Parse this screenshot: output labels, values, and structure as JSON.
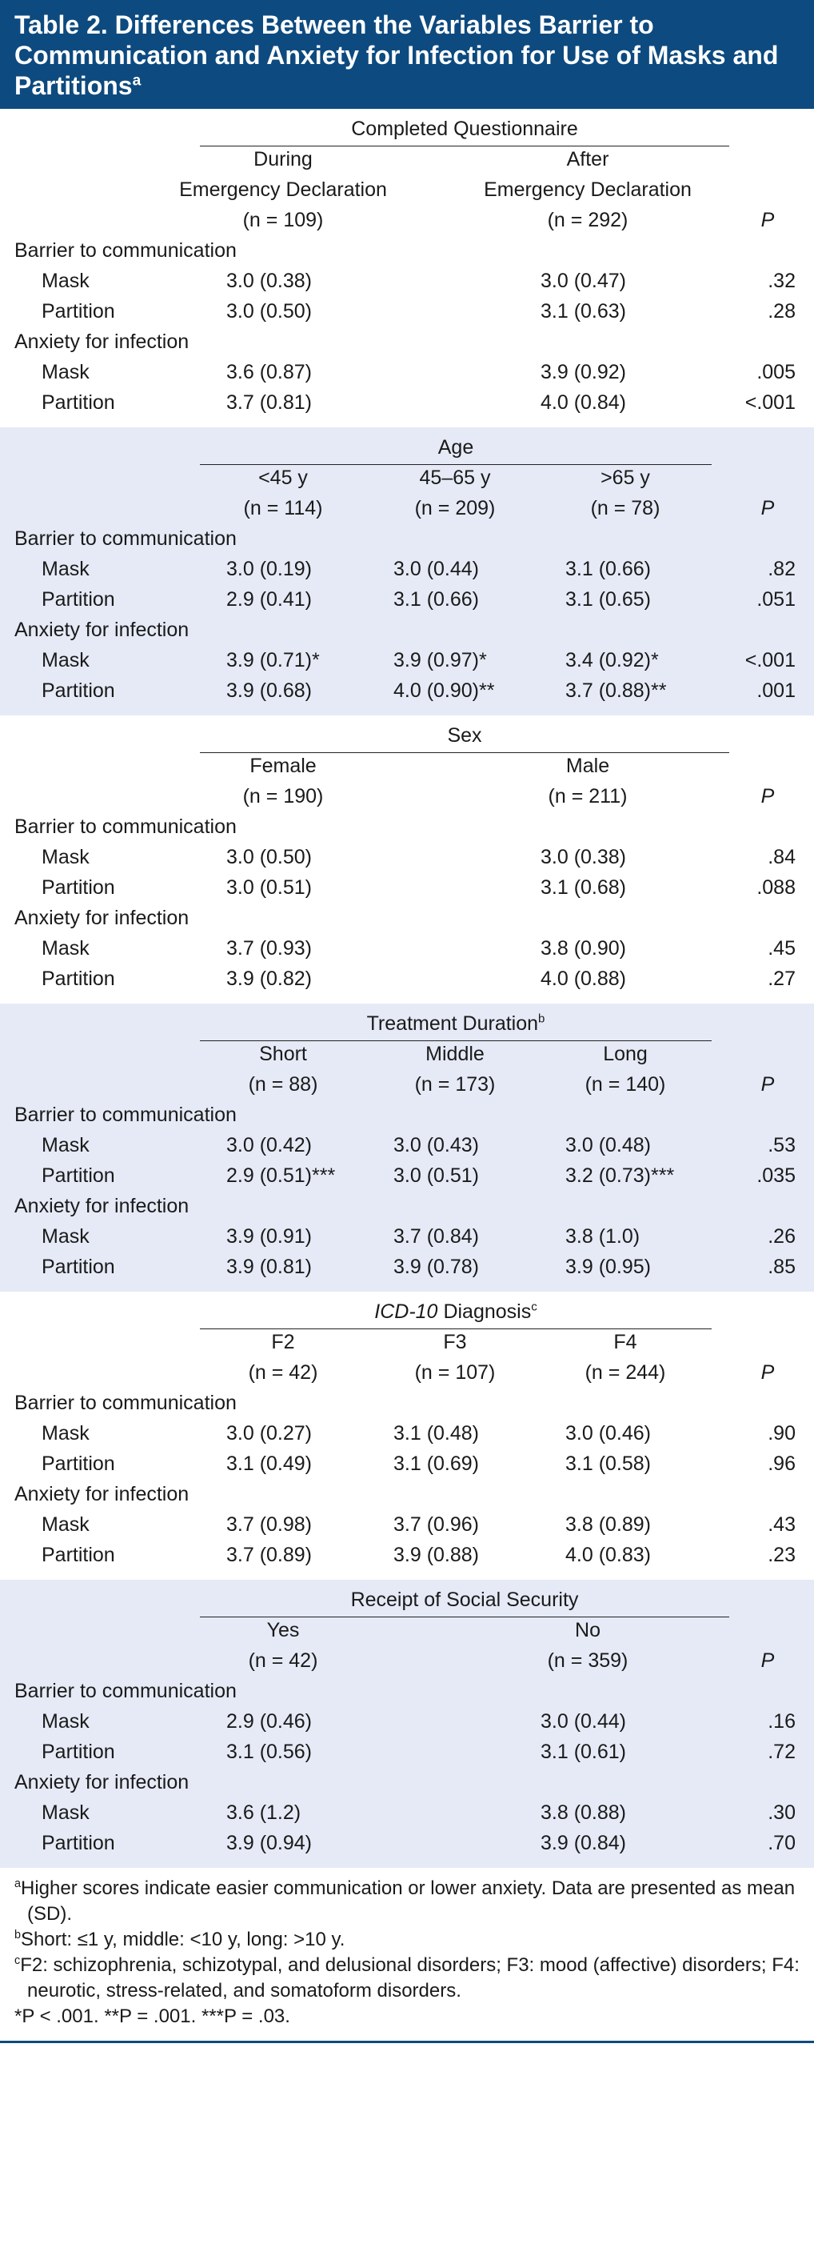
{
  "title": "Table 2. Differences Between the Variables Barrier to Communication and Anxiety for Infection for Use of Masks and Partitions",
  "title_note": "a",
  "sections": [
    {
      "heading": "Completed Questionnaire",
      "shaded": false,
      "columns": [
        {
          "label": [
            "During",
            "Emergency Declaration"
          ],
          "n": "(n = 109)"
        },
        {
          "label": [
            "After",
            "Emergency Declaration"
          ],
          "n": "(n = 292)"
        }
      ],
      "p_label": "P",
      "groups": [
        {
          "label": "Barrier to communication",
          "rows": [
            {
              "label": "Mask",
              "values": [
                "3.0 (0.38)",
                "3.0 (0.47)"
              ],
              "p": ".32"
            },
            {
              "label": "Partition",
              "values": [
                "3.0 (0.50)",
                "3.1 (0.63)"
              ],
              "p": ".28"
            }
          ]
        },
        {
          "label": "Anxiety for infection",
          "rows": [
            {
              "label": "Mask",
              "values": [
                "3.6 (0.87)",
                "3.9 (0.92)"
              ],
              "p": ".005"
            },
            {
              "label": "Partition",
              "values": [
                "3.7 (0.81)",
                "4.0 (0.84)"
              ],
              "p": "<.001"
            }
          ]
        }
      ]
    },
    {
      "heading": "Age",
      "shaded": true,
      "columns": [
        {
          "label": [
            "<45 y"
          ],
          "n": "(n = 114)"
        },
        {
          "label": [
            "45–65 y"
          ],
          "n": "(n = 209)"
        },
        {
          "label": [
            ">65 y"
          ],
          "n": "(n = 78)"
        }
      ],
      "p_label": "P",
      "groups": [
        {
          "label": "Barrier to communication",
          "rows": [
            {
              "label": "Mask",
              "values": [
                "3.0 (0.19)",
                "3.0 (0.44)",
                "3.1 (0.66)"
              ],
              "p": ".82"
            },
            {
              "label": "Partition",
              "values": [
                "2.9 (0.41)",
                "3.1 (0.66)",
                "3.1 (0.65)"
              ],
              "p": ".051"
            }
          ]
        },
        {
          "label": "Anxiety for infection",
          "rows": [
            {
              "label": "Mask",
              "values": [
                "3.9 (0.71)*",
                "3.9 (0.97)*",
                "3.4 (0.92)*"
              ],
              "p": "<.001"
            },
            {
              "label": "Partition",
              "values": [
                "3.9 (0.68)",
                "4.0 (0.90)**",
                "3.7 (0.88)**"
              ],
              "p": ".001"
            }
          ]
        }
      ]
    },
    {
      "heading": "Sex",
      "shaded": false,
      "columns": [
        {
          "label": [
            "Female"
          ],
          "n": "(n = 190)"
        },
        {
          "label": [
            "Male"
          ],
          "n": "(n = 211)"
        }
      ],
      "p_label": "P",
      "groups": [
        {
          "label": "Barrier to communication",
          "rows": [
            {
              "label": "Mask",
              "values": [
                "3.0 (0.50)",
                "3.0 (0.38)"
              ],
              "p": ".84"
            },
            {
              "label": "Partition",
              "values": [
                "3.0 (0.51)",
                "3.1 (0.68)"
              ],
              "p": ".088"
            }
          ]
        },
        {
          "label": "Anxiety for infection",
          "rows": [
            {
              "label": "Mask",
              "values": [
                "3.7 (0.93)",
                "3.8 (0.90)"
              ],
              "p": ".45"
            },
            {
              "label": "Partition",
              "values": [
                "3.9 (0.82)",
                "4.0 (0.88)"
              ],
              "p": ".27"
            }
          ]
        }
      ]
    },
    {
      "heading": "Treatment Duration",
      "heading_note": "b",
      "shaded": true,
      "columns": [
        {
          "label": [
            "Short"
          ],
          "n": "(n = 88)"
        },
        {
          "label": [
            "Middle"
          ],
          "n": "(n = 173)"
        },
        {
          "label": [
            "Long"
          ],
          "n": "(n = 140)"
        }
      ],
      "p_label": "P",
      "groups": [
        {
          "label": "Barrier to communication",
          "rows": [
            {
              "label": "Mask",
              "values": [
                "3.0 (0.42)",
                "3.0 (0.43)",
                "3.0 (0.48)"
              ],
              "p": ".53"
            },
            {
              "label": "Partition",
              "values": [
                "2.9 (0.51)***",
                "3.0 (0.51)",
                "3.2 (0.73)***"
              ],
              "p": ".035"
            }
          ]
        },
        {
          "label": "Anxiety for infection",
          "rows": [
            {
              "label": "Mask",
              "values": [
                "3.9 (0.91)",
                "3.7 (0.84)",
                "3.8 (1.0)"
              ],
              "p": ".26"
            },
            {
              "label": "Partition",
              "values": [
                "3.9 (0.81)",
                "3.9 (0.78)",
                "3.9 (0.95)"
              ],
              "p": ".85"
            }
          ]
        }
      ]
    },
    {
      "heading_italic": "ICD-10",
      "heading": "Diagnosis",
      "heading_note": "c",
      "shaded": false,
      "columns": [
        {
          "label": [
            "F2"
          ],
          "n": "(n = 42)"
        },
        {
          "label": [
            "F3"
          ],
          "n": "(n = 107)"
        },
        {
          "label": [
            "F4"
          ],
          "n": "(n = 244)"
        }
      ],
      "p_label": "P",
      "groups": [
        {
          "label": "Barrier to communication",
          "rows": [
            {
              "label": "Mask",
              "values": [
                "3.0 (0.27)",
                "3.1 (0.48)",
                "3.0 (0.46)"
              ],
              "p": ".90"
            },
            {
              "label": "Partition",
              "values": [
                "3.1 (0.49)",
                "3.1 (0.69)",
                "3.1 (0.58)"
              ],
              "p": ".96"
            }
          ]
        },
        {
          "label": "Anxiety for infection",
          "rows": [
            {
              "label": "Mask",
              "values": [
                "3.7 (0.98)",
                "3.7 (0.96)",
                "3.8 (0.89)"
              ],
              "p": ".43"
            },
            {
              "label": "Partition",
              "values": [
                "3.7 (0.89)",
                "3.9 (0.88)",
                "4.0 (0.83)"
              ],
              "p": ".23"
            }
          ]
        }
      ]
    },
    {
      "heading": "Receipt of Social Security",
      "shaded": true,
      "columns": [
        {
          "label": [
            "Yes"
          ],
          "n": "(n = 42)"
        },
        {
          "label": [
            "No"
          ],
          "n": "(n = 359)"
        }
      ],
      "p_label": "P",
      "groups": [
        {
          "label": "Barrier to communication",
          "rows": [
            {
              "label": "Mask",
              "values": [
                "2.9 (0.46)",
                "3.0 (0.44)"
              ],
              "p": ".16"
            },
            {
              "label": "Partition",
              "values": [
                "3.1 (0.56)",
                "3.1 (0.61)"
              ],
              "p": ".72"
            }
          ]
        },
        {
          "label": "Anxiety for infection",
          "rows": [
            {
              "label": "Mask",
              "values": [
                "3.6 (1.2)",
                "3.8 (0.88)"
              ],
              "p": ".30"
            },
            {
              "label": "Partition",
              "values": [
                "3.9 (0.94)",
                "3.9 (0.84)"
              ],
              "p": ".70"
            }
          ]
        }
      ]
    }
  ],
  "footnotes": [
    {
      "mark": "a",
      "text": "Higher scores indicate easier communication or lower anxiety. Data are presented as mean (SD)."
    },
    {
      "mark": "b",
      "text": "Short: ≤1 y, middle: <10 y, long: >10 y."
    },
    {
      "mark": "c",
      "text": "F2: schizophrenia, schizotypal, and delusional disorders; F3: mood (affective) disorders; F4: neurotic, stress-related, and somatoform disorders."
    },
    {
      "text": "*P < .001. **P = .001. ***P = .03."
    }
  ]
}
